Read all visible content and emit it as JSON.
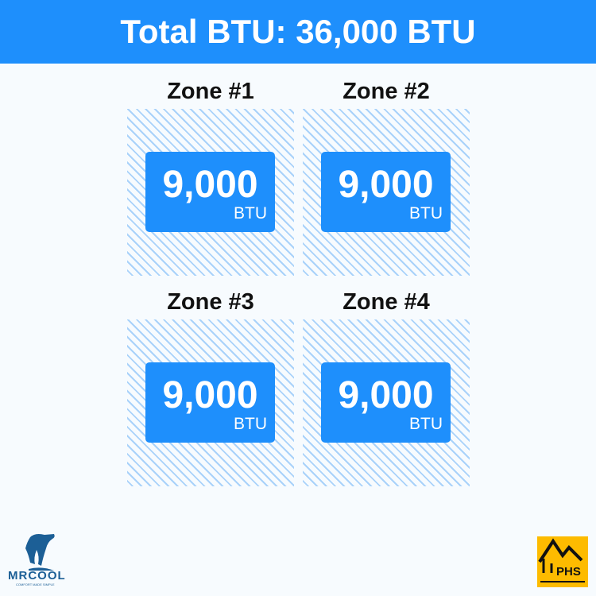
{
  "header": {
    "title": "Total BTU: 36,000 BTU"
  },
  "zones": [
    {
      "title": "Zone #1",
      "value": "9,000",
      "unit": "BTU"
    },
    {
      "title": "Zone #2",
      "value": "9,000",
      "unit": "BTU"
    },
    {
      "title": "Zone #3",
      "value": "9,000",
      "unit": "BTU"
    },
    {
      "title": "Zone #4",
      "value": "9,000",
      "unit": "BTU"
    }
  ],
  "logos": {
    "left": "MRCOOL",
    "left_tagline": "COMFORT MADE SIMPLE",
    "right": "PHS"
  },
  "colors": {
    "accent": "#1e8ffc",
    "hatch": "#a9d2fa",
    "phs": "#fdbb00",
    "mrcool": "#1c5f96"
  }
}
